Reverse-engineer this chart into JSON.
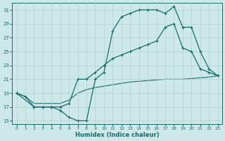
{
  "xlabel": "Humidex (Indice chaleur)",
  "xlim": [
    -0.5,
    23.5
  ],
  "ylim": [
    14.5,
    32
  ],
  "xticks": [
    0,
    1,
    2,
    3,
    4,
    5,
    6,
    7,
    8,
    9,
    10,
    11,
    12,
    13,
    14,
    15,
    16,
    17,
    18,
    19,
    20,
    21,
    22,
    23
  ],
  "yticks": [
    15,
    17,
    19,
    21,
    23,
    25,
    27,
    29,
    31
  ],
  "background_color": "#cde8e8",
  "grid_color": "#b0d0d0",
  "line_color": "#1a6b6b",
  "line1_x": [
    0,
    1,
    2,
    3,
    4,
    5,
    6,
    7,
    8,
    9,
    10,
    11,
    12,
    13,
    14,
    15,
    16,
    17,
    18,
    19,
    20,
    21,
    22,
    23
  ],
  "line1_y": [
    19,
    18.5,
    17,
    17,
    17,
    16.5,
    15.5,
    15,
    15,
    21,
    22,
    28,
    30,
    30.5,
    31,
    31,
    31,
    30.5,
    31.5,
    28.5,
    28.5,
    25,
    22.5,
    21.5
  ],
  "line2_x": [
    0,
    2,
    3,
    4,
    5,
    6,
    7,
    8,
    9,
    10,
    11,
    12,
    13,
    14,
    15,
    16,
    17,
    18,
    19,
    20,
    21,
    22,
    23
  ],
  "line2_y": [
    19,
    17,
    17,
    17,
    17,
    17.5,
    21,
    21,
    22,
    23,
    24,
    24.5,
    25,
    25.5,
    26,
    26.5,
    28.5,
    29,
    25.5,
    25,
    22.5,
    22,
    21.5
  ],
  "line3_x": [
    0,
    1,
    2,
    3,
    4,
    5,
    6,
    7,
    8,
    9,
    10,
    11,
    12,
    13,
    14,
    15,
    16,
    17,
    18,
    19,
    20,
    21,
    22,
    23
  ],
  "line3_y": [
    19,
    18.5,
    17.5,
    17.5,
    17.5,
    17.5,
    18,
    19,
    19.5,
    19.8,
    20,
    20.2,
    20.4,
    20.6,
    20.7,
    20.8,
    20.9,
    21,
    21,
    21,
    21.1,
    21.2,
    21.3,
    21.5
  ]
}
